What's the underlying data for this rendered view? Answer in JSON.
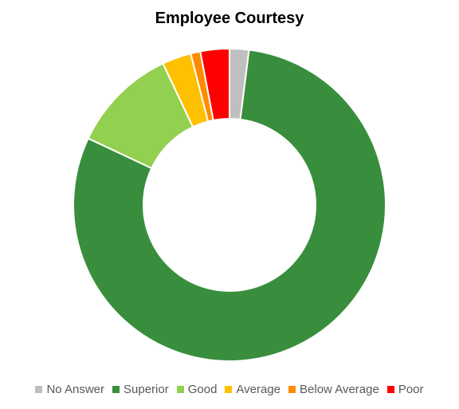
{
  "chart_data": {
    "type": "pie",
    "title": "Employee Courtesy",
    "categories": [
      "No Answer",
      "Superior",
      "Good",
      "Average",
      "Below Average",
      "Poor"
    ],
    "values": [
      2,
      80,
      11,
      3,
      1,
      3
    ],
    "colors": [
      "#bfbfbf",
      "#388e3c",
      "#92d050",
      "#ffc000",
      "#ff8c00",
      "#ff0000"
    ],
    "legend_position": "bottom",
    "style": "donut"
  }
}
